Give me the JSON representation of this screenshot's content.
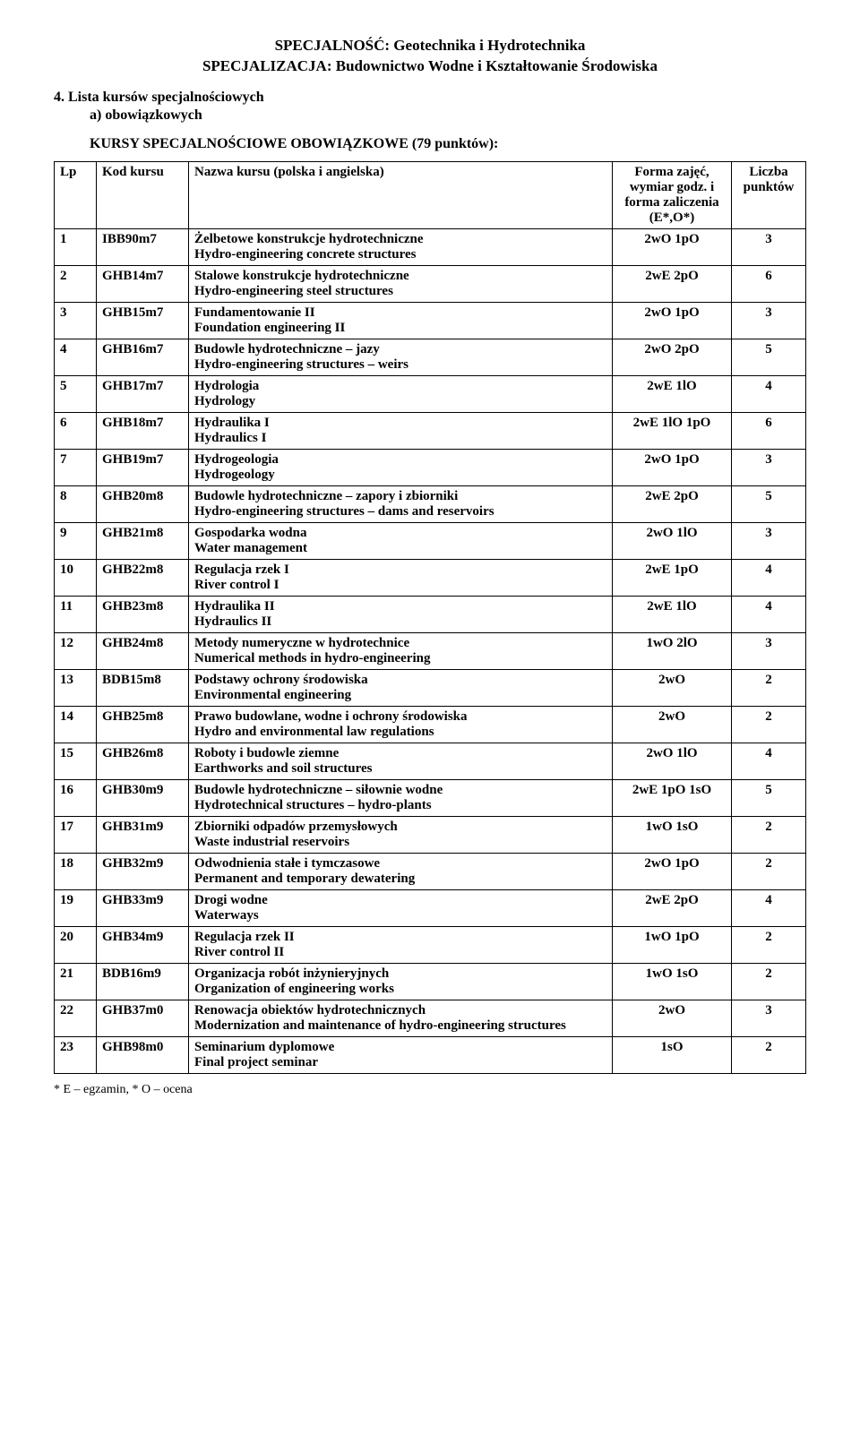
{
  "header": {
    "line1": "SPECJALNOŚĆ: Geotechnika i Hydrotechnika",
    "line2": "SPECJALIZACJA: Budownictwo Wodne i Kształtowanie Środowiska"
  },
  "section_num": "4. Lista kursów specjalnościowych",
  "sub_a": "a)   obowiązkowych",
  "course_title": "KURSY SPECJALNOŚCIOWE OBOWIĄZKOWE (79 punktów):",
  "columns": {
    "lp": "Lp",
    "kod": "Kod kursu",
    "name": "Nazwa kursu (polska i angielska)",
    "forma": "Forma zajęć, wymiar godz. i forma zaliczenia (E*,O*)",
    "liczba": "Liczba punktów"
  },
  "rows": [
    {
      "lp": "1",
      "kod": "IBB90m7",
      "pl": "Żelbetowe konstrukcje hydrotechniczne",
      "en": "Hydro-engineering concrete structures",
      "forma": "2wO 1pO",
      "pkt": "3"
    },
    {
      "lp": "2",
      "kod": "GHB14m7",
      "pl": "Stalowe konstrukcje hydrotechniczne",
      "en": "Hydro-engineering steel structures",
      "forma": "2wE 2pO",
      "pkt": "6"
    },
    {
      "lp": "3",
      "kod": "GHB15m7",
      "pl": "Fundamentowanie II",
      "en": "Foundation engineering II",
      "forma": "2wO 1pO",
      "pkt": "3"
    },
    {
      "lp": "4",
      "kod": "GHB16m7",
      "pl": "Budowle hydrotechniczne – jazy",
      "en": "Hydro-engineering structures – weirs",
      "forma": "2wO 2pO",
      "pkt": "5"
    },
    {
      "lp": "5",
      "kod": "GHB17m7",
      "pl": "Hydrologia",
      "en": "Hydrology",
      "forma": "2wE 1lO",
      "pkt": "4"
    },
    {
      "lp": "6",
      "kod": "GHB18m7",
      "pl": "Hydraulika I",
      "en": "Hydraulics I",
      "forma": "2wE 1lO 1pO",
      "pkt": "6"
    },
    {
      "lp": "7",
      "kod": "GHB19m7",
      "pl": "Hydrogeologia",
      "en": "Hydrogeology",
      "forma": "2wO 1pO",
      "pkt": "3"
    },
    {
      "lp": "8",
      "kod": "GHB20m8",
      "pl": "Budowle hydrotechniczne – zapory i zbiorniki",
      "en": "Hydro-engineering structures – dams and reservoirs",
      "forma": "2wE 2pO",
      "pkt": "5"
    },
    {
      "lp": "9",
      "kod": "GHB21m8",
      "pl": "Gospodarka wodna",
      "en": "Water management",
      "forma": "2wO 1lO",
      "pkt": "3"
    },
    {
      "lp": "10",
      "kod": "GHB22m8",
      "pl": "Regulacja rzek I",
      "en": "River control I",
      "forma": "2wE 1pO",
      "pkt": "4"
    },
    {
      "lp": "11",
      "kod": "GHB23m8",
      "pl": "Hydraulika II",
      "en": "Hydraulics II",
      "forma": "2wE 1lO",
      "pkt": "4"
    },
    {
      "lp": "12",
      "kod": "GHB24m8",
      "pl": "Metody numeryczne w hydrotechnice",
      "en": "Numerical methods in hydro-engineering",
      "forma": "1wO 2lO",
      "pkt": "3"
    },
    {
      "lp": "13",
      "kod": "BDB15m8",
      "pl": "Podstawy ochrony środowiska",
      "en": "Environmental engineering",
      "forma": "2wO",
      "pkt": "2"
    },
    {
      "lp": "14",
      "kod": "GHB25m8",
      "pl": "Prawo budowlane, wodne i ochrony środowiska",
      "en": "Hydro and environmental law regulations",
      "forma": "2wO",
      "pkt": "2"
    },
    {
      "lp": "15",
      "kod": "GHB26m8",
      "pl": "Roboty i budowle ziemne",
      "en": "Earthworks and soil structures",
      "forma": "2wO 1lO",
      "pkt": "4"
    },
    {
      "lp": "16",
      "kod": "GHB30m9",
      "pl": "Budowle hydrotechniczne – siłownie wodne",
      "en": "Hydrotechnical structures – hydro-plants",
      "forma": "2wE 1pO 1sO",
      "pkt": "5"
    },
    {
      "lp": "17",
      "kod": "GHB31m9",
      "pl": "Zbiorniki odpadów przemysłowych",
      "en": "Waste industrial reservoirs",
      "forma": "1wO 1sO",
      "pkt": "2"
    },
    {
      "lp": "18",
      "kod": "GHB32m9",
      "pl": "Odwodnienia stałe i tymczasowe",
      "en": "Permanent and temporary dewatering",
      "forma": "2wO 1pO",
      "pkt": "2"
    },
    {
      "lp": "19",
      "kod": "GHB33m9",
      "pl": "Drogi wodne",
      "en": "Waterways",
      "forma": "2wE 2pO",
      "pkt": "4"
    },
    {
      "lp": "20",
      "kod": "GHB34m9",
      "pl": "Regulacja rzek II",
      "en": "River control II",
      "forma": "1wO 1pO",
      "pkt": "2"
    },
    {
      "lp": "21",
      "kod": "BDB16m9",
      "pl": "Organizacja robót inżynieryjnych",
      "en": "Organization of engineering works",
      "forma": "1wO 1sO",
      "pkt": "2"
    },
    {
      "lp": "22",
      "kod": "GHB37m0",
      "pl": "Renowacja obiektów hydrotechnicznych",
      "en": "Modernization and maintenance of hydro-engineering structures",
      "forma": "2wO",
      "pkt": "3"
    },
    {
      "lp": "23",
      "kod": "GHB98m0",
      "pl": "Seminarium dyplomowe",
      "en": "Final project seminar",
      "forma": "1sO",
      "pkt": "2"
    }
  ],
  "footnote": "* E – egzamin, * O – ocena"
}
